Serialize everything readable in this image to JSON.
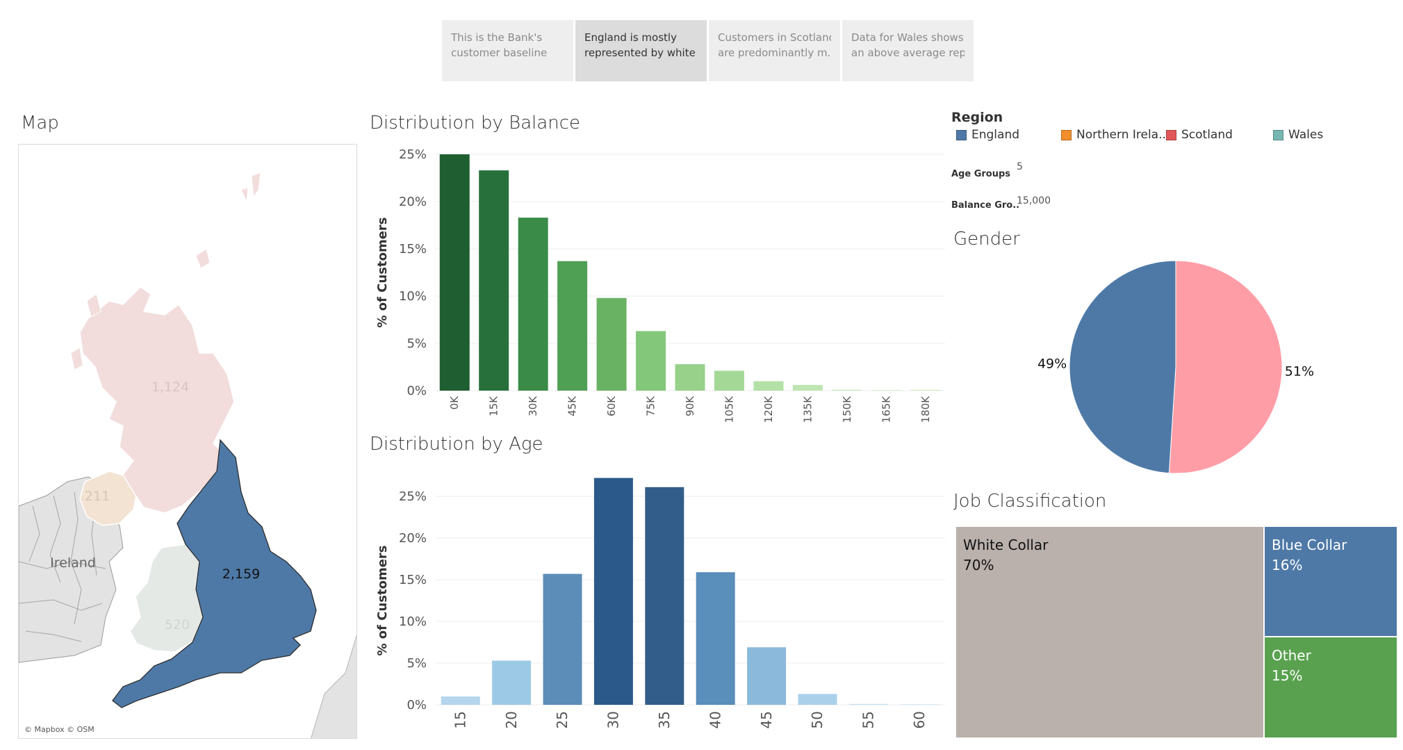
{
  "story_points": [
    {
      "text": "This is the Bank's customer baseline",
      "line1": "This is the Bank's",
      "line2": "customer baseline",
      "active": false
    },
    {
      "text": "England is mostly represented by white ..",
      "line1": "England is mostly",
      "line2": "represented by white ..",
      "active": true
    },
    {
      "text": "Customers in Scotland are predominantly m..",
      "line1": "Customers in Scotland",
      "line2": "are predominantly m..",
      "active": false
    },
    {
      "text": "Data for Wales shows an above average rep..",
      "line1": "Data for Wales shows",
      "line2": "an above average rep..",
      "active": false
    }
  ],
  "map": {
    "title": "Map",
    "attribution": "© Mapbox © OSM",
    "labels": {
      "scotland": "1,124",
      "northern_ireland": "211",
      "ireland": "Ireland",
      "england": "2,159",
      "wales": "520"
    },
    "colors": {
      "england": "#4e79a7",
      "scotland": "#f2dcdc",
      "northern_ireland": "#f3e3d2",
      "wales": "#e4e9e6",
      "land": "#e3e3e3"
    }
  },
  "balance_chart": {
    "title": "Distribution by Balance",
    "ylabel": "% of Customers",
    "chart_data": {
      "type": "bar",
      "categories": [
        "0K",
        "15K",
        "30K",
        "45K",
        "60K",
        "75K",
        "90K",
        "105K",
        "120K",
        "135K",
        "150K",
        "165K",
        "180K"
      ],
      "values": [
        25.0,
        23.3,
        18.3,
        13.7,
        9.8,
        6.3,
        2.8,
        2.1,
        1.0,
        0.6,
        0.1,
        0.0,
        0.1
      ],
      "ylim": [
        0,
        25
      ],
      "yticks": [
        "0%",
        "5%",
        "10%",
        "15%",
        "20%",
        "25%"
      ],
      "colors": [
        "#1f5e31",
        "#28703b",
        "#3a8b47",
        "#4f9f55",
        "#6ab263",
        "#83c77a",
        "#98d18a",
        "#a4d897",
        "#b3e0a6",
        "#bfe5b2",
        "#c9ebbd",
        "#d3f0c8",
        "#d3f0c8"
      ]
    }
  },
  "age_chart": {
    "title": "Distribution by Age",
    "ylabel": "% of Customers",
    "chart_data": {
      "type": "bar",
      "categories": [
        "15",
        "20",
        "25",
        "30",
        "35",
        "40",
        "45",
        "50",
        "55",
        "60"
      ],
      "values": [
        1.0,
        5.3,
        15.7,
        27.2,
        26.1,
        15.9,
        6.9,
        1.3,
        0.1,
        0.0
      ],
      "ylim": [
        0,
        25
      ],
      "yticks": [
        "0%",
        "5%",
        "10%",
        "15%",
        "20%",
        "25%"
      ],
      "colors": [
        "#b5d6ec",
        "#9ccae6",
        "#5b8db8",
        "#2b5a8a",
        "#325d8b",
        "#5a8ebb",
        "#8bb9db",
        "#abd0ea",
        "#c5def1",
        "#d7e8f5"
      ]
    }
  },
  "legend": {
    "title": "Region",
    "items": [
      {
        "label": "England",
        "color": "#4e79a7"
      },
      {
        "label": "Northern Irela..",
        "color": "#f28e2b"
      },
      {
        "label": "Scotland",
        "color": "#e15759"
      },
      {
        "label": "Wales",
        "color": "#76b7b2"
      }
    ]
  },
  "params": {
    "age_groups_label": "Age Groups",
    "age_groups_value": "5",
    "balance_groups_label": "Balance Gro..",
    "balance_groups_value": "15,000"
  },
  "gender_chart": {
    "title": "Gender",
    "chart_data": {
      "type": "pie",
      "values": [
        49,
        51
      ],
      "labels": [
        "49%",
        "51%"
      ],
      "colors": [
        "#4e79a7",
        "#ff9da7"
      ]
    }
  },
  "job_chart": {
    "title": "Job Classification",
    "chart_data": {
      "type": "treemap",
      "items": [
        {
          "name": "White Collar",
          "percent": "70%",
          "value": 70,
          "color": "#bab0ac"
        },
        {
          "name": "Blue Collar",
          "percent": "16%",
          "value": 16,
          "color": "#4e79a7"
        },
        {
          "name": "Other",
          "percent": "15%",
          "value": 15,
          "color": "#59a14f"
        }
      ]
    }
  }
}
